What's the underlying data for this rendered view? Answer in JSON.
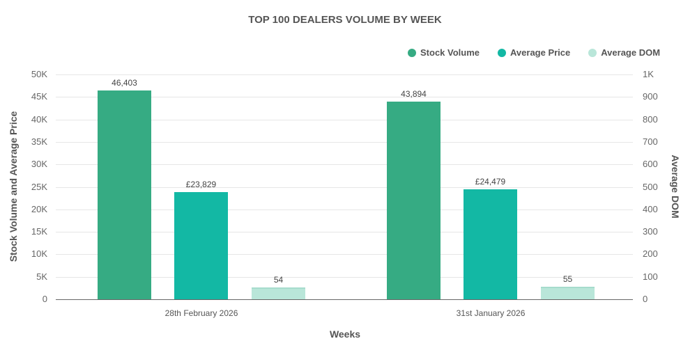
{
  "chart_data": {
    "type": "bar",
    "title": "TOP 100 DEALERS VOLUME BY WEEK",
    "xlabel": "Weeks",
    "ylabel": "Stock Volume and Average Price",
    "ylabel_right": "Average DOM",
    "categories": [
      "28th February 2026",
      "31st January 2026"
    ],
    "series": [
      {
        "name": "Stock Volume",
        "axis": "left",
        "color": "#36ab83",
        "values": [
          46403,
          43894
        ],
        "labels": [
          "46,403",
          "43,894"
        ]
      },
      {
        "name": "Average Price",
        "axis": "left",
        "color": "#13b8a4",
        "values": [
          23829,
          24479
        ],
        "labels": [
          "£23,829",
          "£24,479"
        ]
      },
      {
        "name": "Average DOM",
        "axis": "right",
        "color": "#b9e6d9",
        "values": [
          54,
          55
        ],
        "labels": [
          "54",
          "55"
        ]
      }
    ],
    "ylim": [
      0,
      50000
    ],
    "ylim_right": [
      0,
      1000
    ],
    "yticks_left": [
      "0",
      "5K",
      "10K",
      "15K",
      "20K",
      "25K",
      "30K",
      "35K",
      "40K",
      "45K",
      "50K"
    ],
    "yticks_right": [
      "0",
      "100",
      "200",
      "300",
      "400",
      "500",
      "600",
      "700",
      "800",
      "900",
      "1K"
    ],
    "grid": true,
    "legend_position": "top-right"
  }
}
